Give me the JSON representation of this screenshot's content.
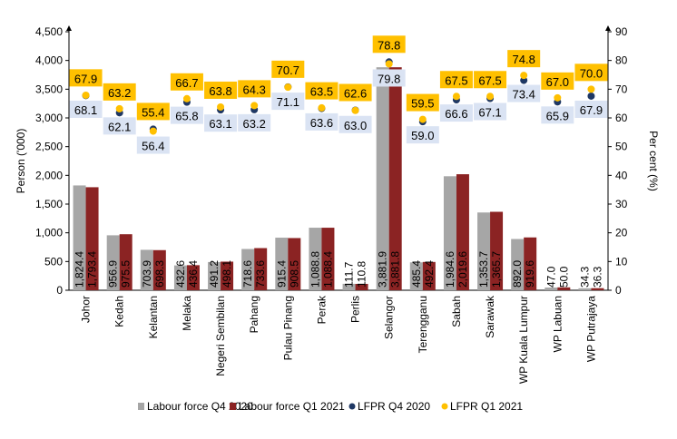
{
  "chart_data": {
    "type": "bar",
    "categories": [
      "Johor",
      "Kedah",
      "Kelantan",
      "Melaka",
      "Negeri Sembilan",
      "Pahang",
      "Pulau Pinang",
      "Perak",
      "Perlis",
      "Selangor",
      "Terengganu",
      "Sabah",
      "Sarawak",
      "WP Kuala Lumpur",
      "WP Labuan",
      "WP Putrajaya"
    ],
    "ylabel": "Person ('000)",
    "y2label": "Per cent (%)",
    "ylim": [
      0,
      4500
    ],
    "y2lim": [
      0,
      90
    ],
    "yticks": [
      "0",
      "500",
      "1,000",
      "1,500",
      "2,000",
      "2,500",
      "3,000",
      "3,500",
      "4,000",
      "4,500"
    ],
    "y2ticks": [
      "0",
      "10",
      "20",
      "30",
      "40",
      "50",
      "60",
      "70",
      "80",
      "90"
    ],
    "grid": false,
    "legend_position": "bottom",
    "series": [
      {
        "name": "Labour force Q4 2020",
        "type": "bar",
        "axis": "left",
        "color": "#a6a6a6",
        "values": [
          1824.4,
          956.9,
          703.9,
          432.6,
          491.2,
          718.6,
          915.4,
          1088.8,
          111.7,
          3881.9,
          485.4,
          1984.6,
          1353.7,
          892.0,
          47.0,
          34.3
        ],
        "labels": [
          "1,824.4",
          "956.9",
          "703.9",
          "432.6",
          "491.2",
          "718.6",
          "915.4",
          "1,088.8",
          "111.7",
          "3,881.9",
          "485.4",
          "1,984.6",
          "1,353.7",
          "892.0",
          "47.0",
          "34.3"
        ]
      },
      {
        "name": "Labour force Q1 2021",
        "type": "bar",
        "axis": "left",
        "color": "#8b2323",
        "values": [
          1793.4,
          975.5,
          698.3,
          436.4,
          498.1,
          733.6,
          908.5,
          1088.4,
          110.8,
          3881.8,
          492.4,
          2019.6,
          1365.7,
          919.6,
          50.0,
          36.3
        ],
        "labels": [
          "1,793.4",
          "975.5",
          "698.3",
          "436.4",
          "498.1",
          "733.6",
          "908.5",
          "1,088.4",
          "110.8",
          "3,881.8",
          "492.4",
          "2,019.6",
          "1,365.7",
          "919.6",
          "50.0",
          "36.3"
        ]
      },
      {
        "name": "LFPR Q4 2020",
        "type": "scatter",
        "axis": "right",
        "color": "#1f3864",
        "label_bg": "#dae3f3",
        "values": [
          68.1,
          62.1,
          56.4,
          65.8,
          63.1,
          63.2,
          71.1,
          63.6,
          63.0,
          79.8,
          59.0,
          66.6,
          67.1,
          73.4,
          65.9,
          67.9
        ],
        "labels": [
          "68.1",
          "62.1",
          "56.4",
          "65.8",
          "63.1",
          "63.2",
          "71.1",
          "63.6",
          "63.0",
          "79.8",
          "59.0",
          "66.6",
          "67.1",
          "73.4",
          "65.9",
          "67.9"
        ]
      },
      {
        "name": "LFPR Q1 2021",
        "type": "scatter",
        "axis": "right",
        "color": "#ffc000",
        "label_bg": "#ffc000",
        "values": [
          67.9,
          63.2,
          55.4,
          66.7,
          63.8,
          64.3,
          70.7,
          63.5,
          62.6,
          78.8,
          59.5,
          67.5,
          67.5,
          74.8,
          67.0,
          70.0
        ],
        "labels": [
          "67.9",
          "63.2",
          "55.4",
          "66.7",
          "63.8",
          "64.3",
          "70.7",
          "63.5",
          "62.6",
          "78.8",
          "59.5",
          "67.5",
          "67.5",
          "74.8",
          "67.0",
          "70.0"
        ]
      }
    ]
  }
}
